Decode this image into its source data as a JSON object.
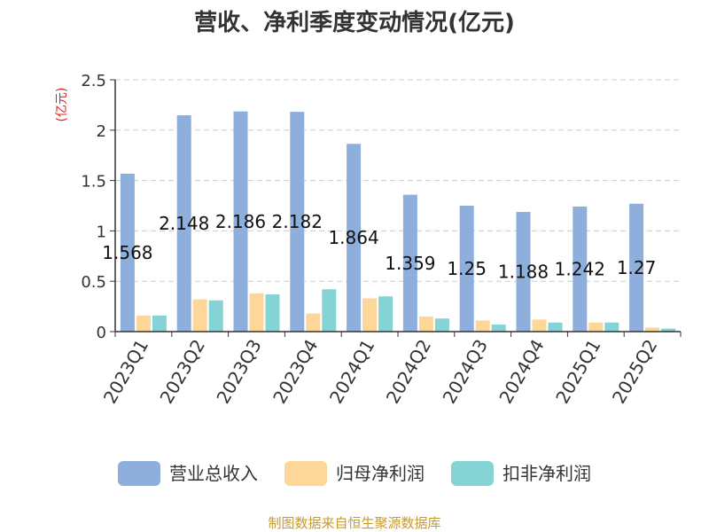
{
  "chart_data": {
    "type": "bar",
    "title": "营收、净利季度变动情况(亿元)",
    "ylabel": "(亿元)",
    "xlabel": "",
    "ylim": [
      0,
      2.5
    ],
    "yticks": [
      "0",
      "0.5",
      "1",
      "1.5",
      "2",
      "2.5"
    ],
    "grid": true,
    "legend_position": "bottom",
    "categories": [
      "2023Q1",
      "2023Q2",
      "2023Q3",
      "2023Q4",
      "2024Q1",
      "2024Q2",
      "2024Q3",
      "2024Q4",
      "2025Q1",
      "2025Q2"
    ],
    "series": [
      {
        "name": "营业总收入",
        "color": "#8eaedc",
        "values": [
          1.568,
          2.148,
          2.186,
          2.182,
          1.864,
          1.359,
          1.25,
          1.188,
          1.242,
          1.27
        ],
        "labels": [
          "1.568",
          "2.148",
          "2.186",
          "2.182",
          "1.864",
          "1.359",
          "1.25",
          "1.188",
          "1.242",
          "1.27"
        ]
      },
      {
        "name": "归母净利润",
        "color": "#fdd799",
        "values": [
          0.16,
          0.32,
          0.38,
          0.18,
          0.33,
          0.15,
          0.11,
          0.12,
          0.09,
          0.04
        ]
      },
      {
        "name": "扣非净利润",
        "color": "#86d3d6",
        "values": [
          0.16,
          0.31,
          0.37,
          0.42,
          0.35,
          0.13,
          0.07,
          0.09,
          0.09,
          0.03
        ]
      }
    ]
  },
  "source": "制图数据来自恒生聚源数据库"
}
